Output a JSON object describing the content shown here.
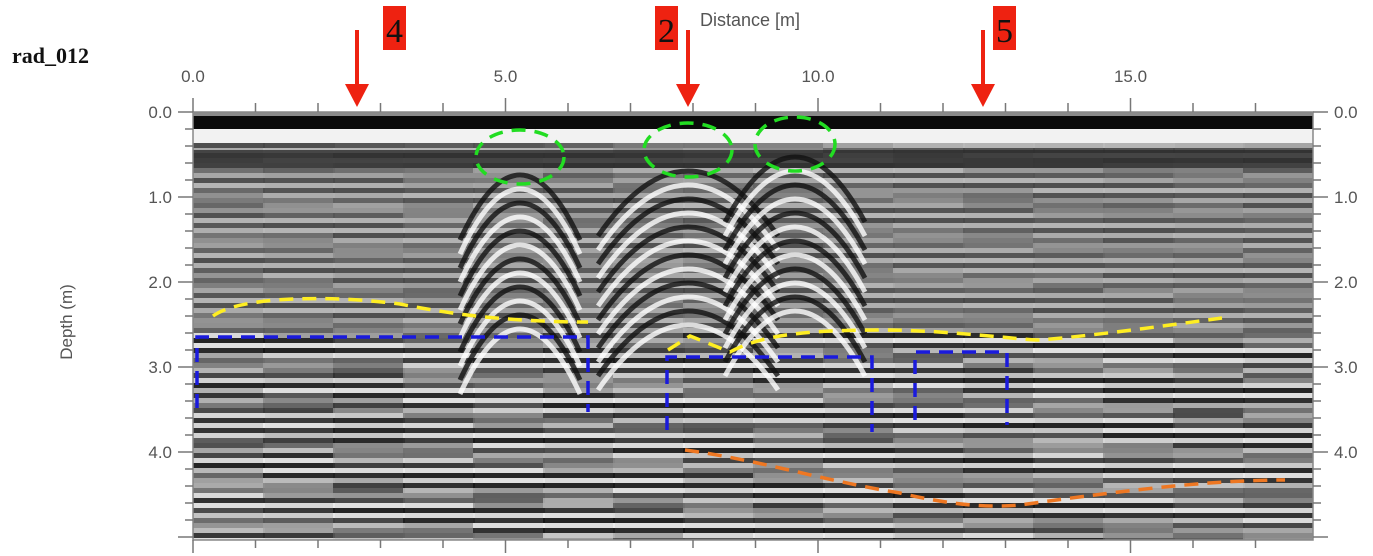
{
  "title": "rad_012",
  "x_axis": {
    "label": "Distance [m]",
    "ticks": [
      "0.0",
      "5.0",
      "10.0",
      "15.0"
    ]
  },
  "y_axis": {
    "label": "Depth (m)",
    "ticks": [
      "0.0",
      "1.0",
      "2.0",
      "3.0",
      "4.0"
    ]
  },
  "markers": [
    {
      "label": "4"
    },
    {
      "label": "2"
    },
    {
      "label": "5"
    }
  ]
}
